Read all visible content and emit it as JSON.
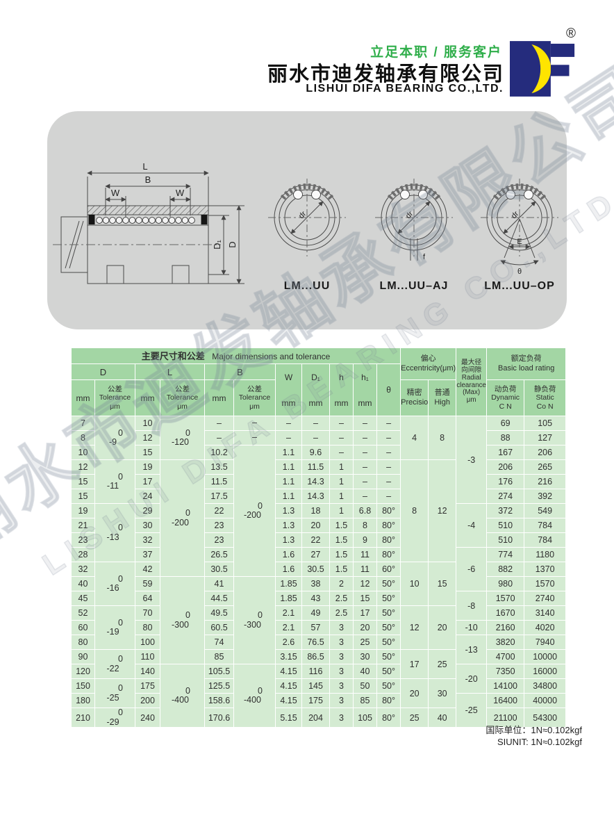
{
  "header": {
    "slogan": "立足本职 / 服务客户",
    "company_cn": "丽水市迪发轴承有限公司",
    "company_en": "LISHUI DIFA BEARING CO.,LTD.",
    "registered_mark": "®"
  },
  "colors": {
    "slogan_green": "#2fae4a",
    "table_header_green": "#a3d6a4",
    "table_body_green": "#d4ebd2",
    "panel_gray": "#d3d4d3",
    "logo_blue": "#252c7d",
    "logo_yellow": "#ffe400"
  },
  "diagram": {
    "dimension_labels": {
      "length": "L",
      "inner_length": "B",
      "w_left": "W",
      "w_right": "W",
      "d1": "D₁",
      "d": "D"
    },
    "views": [
      {
        "caption": "LM...UU",
        "bore_label": "dr"
      },
      {
        "caption": "LM...UU–AJ",
        "bore_label": "dr",
        "slot_label": "f"
      },
      {
        "caption": "LM...UU–OP",
        "bore_label": "dr",
        "open_width_label": "E",
        "open_angle_label": "θ"
      }
    ]
  },
  "table": {
    "title_cn": "主要尺寸和公差",
    "title_en": "Major dimensions and tolerance",
    "groups": {
      "d": "D",
      "l": "L",
      "b": "B"
    },
    "unit_mm": "mm",
    "tolerance_header": [
      "公差",
      "Tolerance",
      "μm"
    ],
    "col_headers": {
      "w": [
        "W",
        "mm"
      ],
      "d1": [
        "D₁",
        "mm"
      ],
      "h": [
        "h",
        "mm"
      ],
      "h1": [
        "h₁",
        "mm"
      ],
      "theta": [
        "θ"
      ]
    },
    "eccentricity": {
      "title_cn": "偏心",
      "title_en": "Eccentricity(μm)",
      "precision_cn": "精密",
      "precision_en": "Precision",
      "high_cn": "普通",
      "high_en": "High"
    },
    "clearance_header": [
      "最大径",
      "向间隙",
      "Radial",
      "clearance",
      "(Max)",
      "μm"
    ],
    "load": {
      "title_cn": "额定负荷",
      "title_en": "Basic load rating",
      "dynamic": [
        "动负荷",
        "Dynamic",
        "C N"
      ],
      "static": [
        "静负荷",
        "Static",
        "Co N"
      ]
    },
    "columns": [
      "d",
      "l",
      "b",
      "w",
      "d1",
      "h",
      "h1",
      "theta",
      "dynamic",
      "static"
    ],
    "rows": [
      [
        "7",
        "10",
        "–",
        "–",
        "–",
        "–",
        "–",
        "–",
        "69",
        "105"
      ],
      [
        "8",
        "12",
        "–",
        "–",
        "–",
        "–",
        "–",
        "–",
        "88",
        "127"
      ],
      [
        "10",
        "15",
        "10.2",
        "1.1",
        "9.6",
        "–",
        "–",
        "–",
        "167",
        "206"
      ],
      [
        "12",
        "19",
        "13.5",
        "1.1",
        "11.5",
        "1",
        "–",
        "–",
        "206",
        "265"
      ],
      [
        "15",
        "17",
        "11.5",
        "1.1",
        "14.3",
        "1",
        "–",
        "–",
        "176",
        "216"
      ],
      [
        "15",
        "24",
        "17.5",
        "1.1",
        "14.3",
        "1",
        "–",
        "–",
        "274",
        "392"
      ],
      [
        "19",
        "29",
        "22",
        "1.3",
        "18",
        "1",
        "6.8",
        "80°",
        "372",
        "549"
      ],
      [
        "21",
        "30",
        "23",
        "1.3",
        "20",
        "1.5",
        "8",
        "80°",
        "510",
        "784"
      ],
      [
        "23",
        "32",
        "23",
        "1.3",
        "22",
        "1.5",
        "9",
        "80°",
        "510",
        "784"
      ],
      [
        "28",
        "37",
        "26.5",
        "1.6",
        "27",
        "1.5",
        "11",
        "80°",
        "774",
        "1180"
      ],
      [
        "32",
        "42",
        "30.5",
        "1.6",
        "30.5",
        "1.5",
        "11",
        "60°",
        "882",
        "1370"
      ],
      [
        "40",
        "59",
        "41",
        "1.85",
        "38",
        "2",
        "12",
        "50°",
        "980",
        "1570"
      ],
      [
        "45",
        "64",
        "44.5",
        "1.85",
        "43",
        "2.5",
        "15",
        "50°",
        "1570",
        "2740"
      ],
      [
        "52",
        "70",
        "49.5",
        "2.1",
        "49",
        "2.5",
        "17",
        "50°",
        "1670",
        "3140"
      ],
      [
        "60",
        "80",
        "60.5",
        "2.1",
        "57",
        "3",
        "20",
        "50°",
        "2160",
        "4020"
      ],
      [
        "80",
        "100",
        "74",
        "2.6",
        "76.5",
        "3",
        "25",
        "50°",
        "3820",
        "7940"
      ],
      [
        "90",
        "110",
        "85",
        "3.15",
        "86.5",
        "3",
        "30",
        "50°",
        "4700",
        "10000"
      ],
      [
        "120",
        "140",
        "105.5",
        "4.15",
        "116",
        "3",
        "40",
        "50°",
        "7350",
        "16000"
      ],
      [
        "150",
        "175",
        "125.5",
        "4.15",
        "145",
        "3",
        "50",
        "50°",
        "14100",
        "34800"
      ],
      [
        "180",
        "200",
        "158.6",
        "4.15",
        "175",
        "3",
        "85",
        "80°",
        "16400",
        "40000"
      ],
      [
        "210",
        "240",
        "170.6",
        "5.15",
        "204",
        "3",
        "105",
        "80°",
        "21100",
        "54300"
      ]
    ],
    "d_tol_groups": [
      {
        "span": 3,
        "lines": [
          "0",
          "-9"
        ]
      },
      {
        "span": 3,
        "lines": [
          "0",
          "-11"
        ]
      },
      {
        "span": 4,
        "lines": [
          "0",
          "-13"
        ]
      },
      {
        "span": 3,
        "lines": [
          "0",
          "-16"
        ]
      },
      {
        "span": 3,
        "lines": [
          "0",
          "-19"
        ]
      },
      {
        "span": 2,
        "lines": [
          "0",
          "-22"
        ]
      },
      {
        "span": 2,
        "lines": [
          "0",
          "-25"
        ]
      },
      {
        "span": 1,
        "lines": [
          "0",
          "-29"
        ]
      }
    ],
    "l_tol_groups": [
      {
        "span": 3,
        "lines": [
          "0",
          "-120"
        ]
      },
      {
        "span": 8,
        "lines": [
          "0",
          "-200"
        ]
      },
      {
        "span": 6,
        "lines": [
          "0",
          "-300"
        ]
      },
      {
        "span": 4,
        "lines": [
          "0",
          "-400"
        ]
      }
    ],
    "b_tol_groups": [
      {
        "span": 1,
        "lines": [
          "–"
        ]
      },
      {
        "span": 1,
        "lines": [
          "–"
        ]
      },
      {
        "span": 9,
        "lines": [
          "0",
          "-200"
        ]
      },
      {
        "span": 6,
        "lines": [
          "0",
          "-300"
        ]
      },
      {
        "span": 4,
        "lines": [
          "0",
          "-400"
        ]
      }
    ],
    "precision_groups": [
      {
        "span": 3,
        "value": "4"
      },
      {
        "span": 7,
        "value": "8"
      },
      {
        "span": 3,
        "value": "10"
      },
      {
        "span": 3,
        "value": "12"
      },
      {
        "span": 2,
        "value": "17"
      },
      {
        "span": 2,
        "value": "20"
      },
      {
        "span": 1,
        "value": "25"
      }
    ],
    "high_groups": [
      {
        "span": 3,
        "value": "8"
      },
      {
        "span": 7,
        "value": "12"
      },
      {
        "span": 3,
        "value": "15"
      },
      {
        "span": 3,
        "value": "20"
      },
      {
        "span": 2,
        "value": "25"
      },
      {
        "span": 2,
        "value": "30"
      },
      {
        "span": 1,
        "value": "40"
      }
    ],
    "clearance_groups": [
      {
        "span": 6,
        "value": "-3"
      },
      {
        "span": 3,
        "value": "-4"
      },
      {
        "span": 3,
        "value": "-6"
      },
      {
        "span": 2,
        "value": "-8"
      },
      {
        "span": 1,
        "value": "-10"
      },
      {
        "span": 2,
        "value": "-13"
      },
      {
        "span": 2,
        "value": "-20"
      },
      {
        "span": 2,
        "value": "-25"
      }
    ]
  },
  "footer": {
    "line1": "国际单位：1N≈0.102kgf",
    "line2": "SIUNIT: 1N≈0.102kgf"
  },
  "watermark": {
    "cn": "丽水市迪发轴承有限公司",
    "en": "LISHUI DIFA BEARING CO.,LTD."
  }
}
